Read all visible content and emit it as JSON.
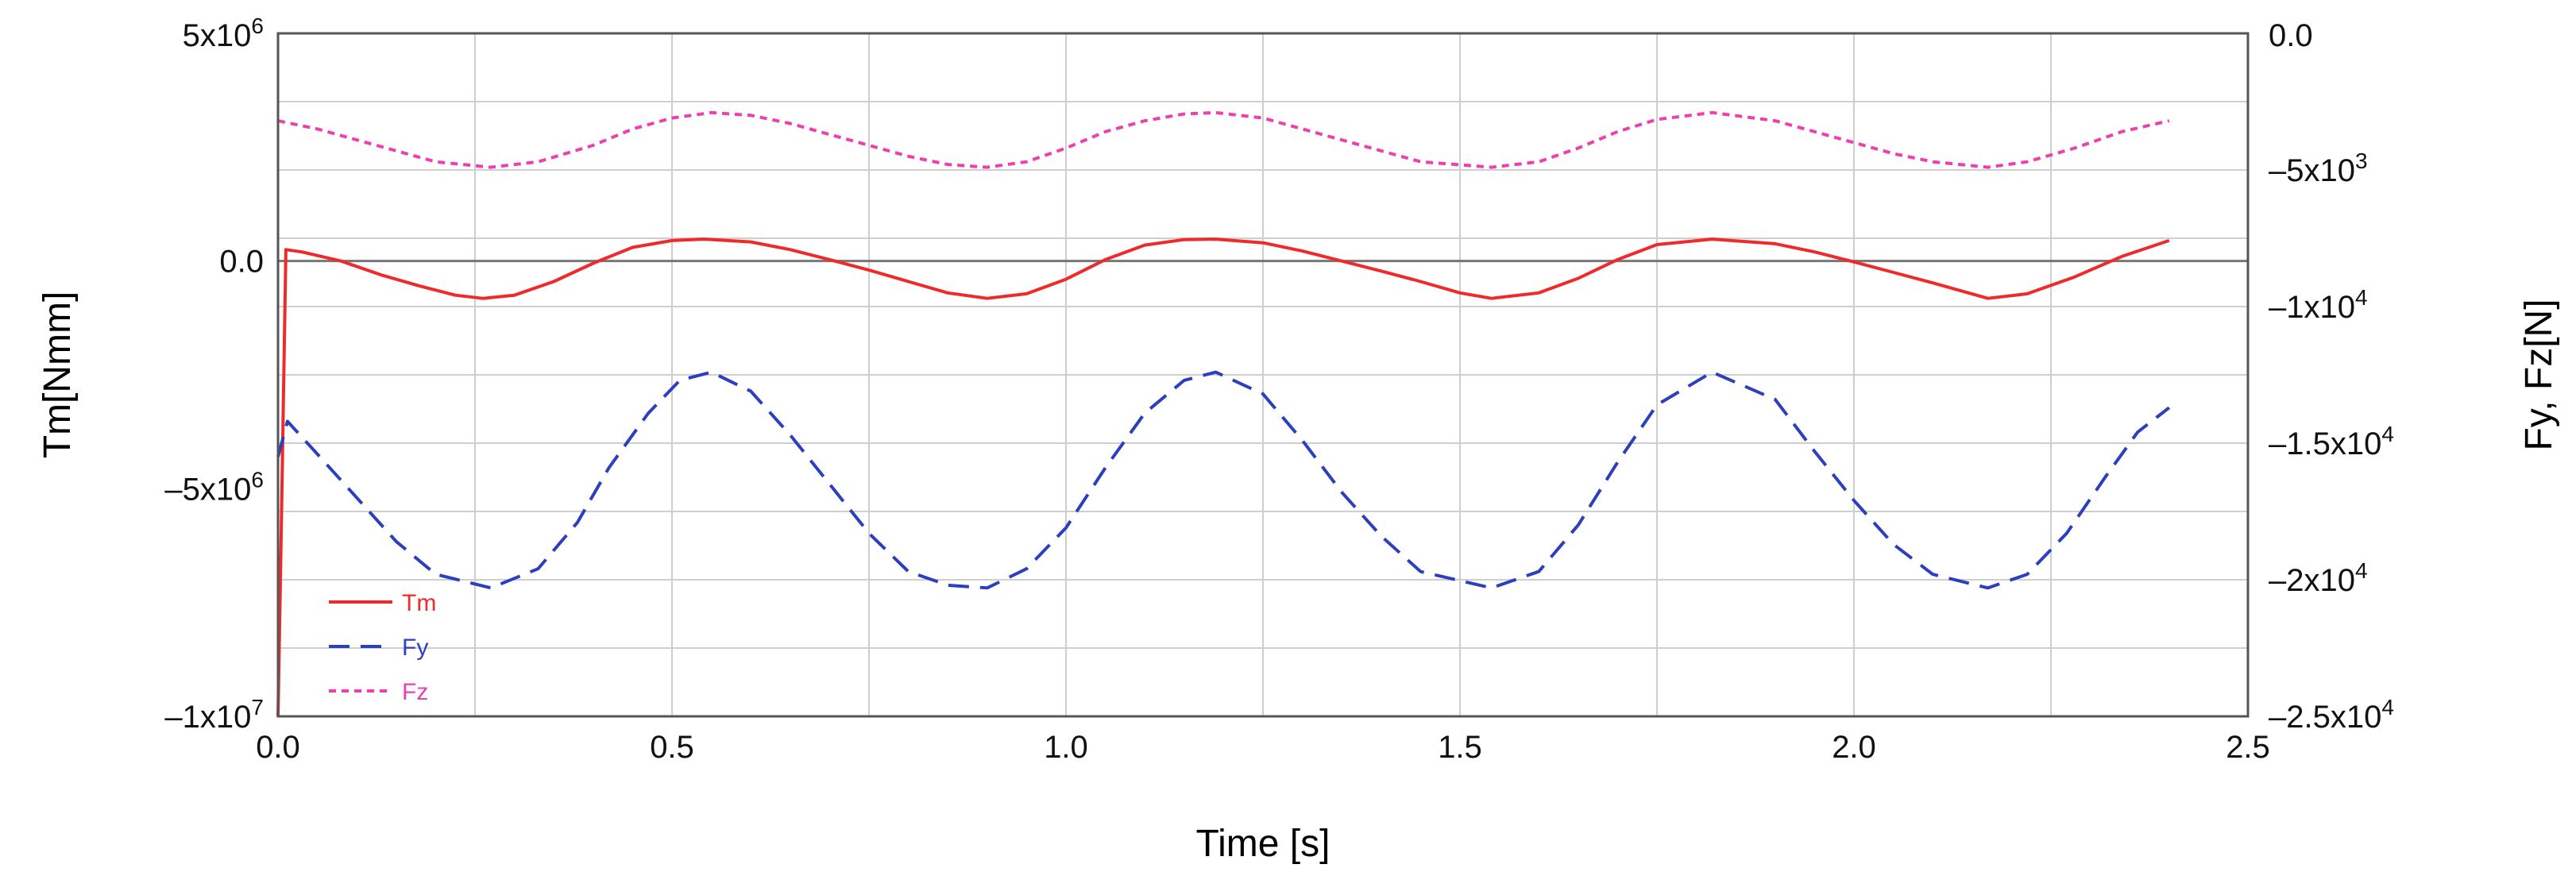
{
  "chart_data": {
    "type": "line",
    "xlabel": "Time [s]",
    "ylabel_left": "Tm[Nmm]",
    "ylabel_right": "Fy, Fz[N]",
    "xlim": [
      0,
      2.5
    ],
    "ylim_left": [
      -10000000,
      5000000
    ],
    "ylim_right": [
      -25000,
      0
    ],
    "grid": true,
    "legend_position": "bottom-left",
    "x_ticks": [
      {
        "value": 0.0,
        "label": "0.0"
      },
      {
        "value": 0.5,
        "label": "0.5"
      },
      {
        "value": 1.0,
        "label": "1.0"
      },
      {
        "value": 1.5,
        "label": "1.5"
      },
      {
        "value": 2.0,
        "label": "2.0"
      },
      {
        "value": 2.5,
        "label": "2.5"
      }
    ],
    "y_left_ticks": [
      {
        "value": 5000000,
        "base": "5x10",
        "exp": "6",
        "dash": false
      },
      {
        "value": 0,
        "base": "0.0",
        "exp": "",
        "dash": false
      },
      {
        "value": -5000000,
        "base": "5x10",
        "exp": "6",
        "dash": true
      },
      {
        "value": -10000000,
        "base": "1x10",
        "exp": "7",
        "dash": true
      }
    ],
    "y_right_ticks": [
      {
        "value": 0,
        "base": "0.0",
        "exp": "",
        "dash": false
      },
      {
        "value": -5000,
        "base": "5x10",
        "exp": "3",
        "dash": true
      },
      {
        "value": -10000,
        "base": "1x10",
        "exp": "4",
        "dash": true
      },
      {
        "value": -15000,
        "base": "1.5x10",
        "exp": "4",
        "dash": true
      },
      {
        "value": -20000,
        "base": "2x10",
        "exp": "4",
        "dash": true
      },
      {
        "value": -25000,
        "base": "2.5x10",
        "exp": "4",
        "dash": true
      }
    ],
    "series": [
      {
        "name": "Tm",
        "axis": "left",
        "color": "#ee2a2a",
        "style": "solid",
        "points": [
          [
            0.0,
            -10000000
          ],
          [
            0.004,
            -6000000
          ],
          [
            0.01,
            250000
          ],
          [
            0.03,
            200000
          ],
          [
            0.08,
            0
          ],
          [
            0.13,
            -300000
          ],
          [
            0.18,
            -550000
          ],
          [
            0.225,
            -750000
          ],
          [
            0.26,
            -820000
          ],
          [
            0.3,
            -750000
          ],
          [
            0.35,
            -450000
          ],
          [
            0.4,
            -50000
          ],
          [
            0.45,
            300000
          ],
          [
            0.5,
            450000
          ],
          [
            0.54,
            480000
          ],
          [
            0.6,
            420000
          ],
          [
            0.65,
            250000
          ],
          [
            0.7,
            30000
          ],
          [
            0.75,
            -200000
          ],
          [
            0.8,
            -450000
          ],
          [
            0.85,
            -700000
          ],
          [
            0.9,
            -820000
          ],
          [
            0.95,
            -720000
          ],
          [
            1.0,
            -400000
          ],
          [
            1.05,
            30000
          ],
          [
            1.1,
            350000
          ],
          [
            1.15,
            470000
          ],
          [
            1.19,
            480000
          ],
          [
            1.25,
            400000
          ],
          [
            1.3,
            220000
          ],
          [
            1.35,
            0
          ],
          [
            1.4,
            -220000
          ],
          [
            1.45,
            -450000
          ],
          [
            1.5,
            -700000
          ],
          [
            1.54,
            -820000
          ],
          [
            1.6,
            -700000
          ],
          [
            1.65,
            -380000
          ],
          [
            1.7,
            30000
          ],
          [
            1.75,
            360000
          ],
          [
            1.82,
            480000
          ],
          [
            1.9,
            380000
          ],
          [
            1.95,
            200000
          ],
          [
            2.0,
            -20000
          ],
          [
            2.05,
            -250000
          ],
          [
            2.1,
            -480000
          ],
          [
            2.17,
            -820000
          ],
          [
            2.22,
            -720000
          ],
          [
            2.28,
            -350000
          ],
          [
            2.34,
            100000
          ],
          [
            2.4,
            450000
          ]
        ]
      },
      {
        "name": "Fy",
        "axis": "right",
        "color": "#2b3fbf",
        "style": "dashed",
        "points": [
          [
            0.0,
            -15500
          ],
          [
            0.012,
            -14200
          ],
          [
            0.05,
            -15400
          ],
          [
            0.1,
            -17000
          ],
          [
            0.15,
            -18600
          ],
          [
            0.2,
            -19800
          ],
          [
            0.27,
            -20300
          ],
          [
            0.33,
            -19600
          ],
          [
            0.38,
            -17900
          ],
          [
            0.42,
            -15900
          ],
          [
            0.47,
            -13900
          ],
          [
            0.51,
            -12700
          ],
          [
            0.55,
            -12400
          ],
          [
            0.6,
            -13100
          ],
          [
            0.65,
            -14700
          ],
          [
            0.7,
            -16500
          ],
          [
            0.75,
            -18300
          ],
          [
            0.8,
            -19700
          ],
          [
            0.85,
            -20200
          ],
          [
            0.9,
            -20300
          ],
          [
            0.95,
            -19600
          ],
          [
            1.0,
            -18100
          ],
          [
            1.05,
            -15900
          ],
          [
            1.1,
            -13900
          ],
          [
            1.15,
            -12700
          ],
          [
            1.19,
            -12400
          ],
          [
            1.25,
            -13200
          ],
          [
            1.3,
            -14900
          ],
          [
            1.35,
            -16800
          ],
          [
            1.4,
            -18400
          ],
          [
            1.45,
            -19700
          ],
          [
            1.54,
            -20300
          ],
          [
            1.6,
            -19700
          ],
          [
            1.65,
            -18000
          ],
          [
            1.7,
            -15700
          ],
          [
            1.75,
            -13600
          ],
          [
            1.82,
            -12400
          ],
          [
            1.9,
            -13400
          ],
          [
            1.95,
            -15300
          ],
          [
            2.0,
            -17100
          ],
          [
            2.05,
            -18700
          ],
          [
            2.1,
            -19800
          ],
          [
            2.17,
            -20300
          ],
          [
            2.22,
            -19800
          ],
          [
            2.27,
            -18300
          ],
          [
            2.32,
            -16200
          ],
          [
            2.36,
            -14600
          ],
          [
            2.4,
            -13700
          ]
        ]
      },
      {
        "name": "Fz",
        "axis": "right",
        "color": "#ee3fae",
        "style": "dotted",
        "points": [
          [
            0.0,
            -3200
          ],
          [
            0.05,
            -3500
          ],
          [
            0.1,
            -3900
          ],
          [
            0.15,
            -4300
          ],
          [
            0.2,
            -4700
          ],
          [
            0.27,
            -4900
          ],
          [
            0.33,
            -4700
          ],
          [
            0.4,
            -4100
          ],
          [
            0.45,
            -3500
          ],
          [
            0.5,
            -3100
          ],
          [
            0.55,
            -2900
          ],
          [
            0.6,
            -3000
          ],
          [
            0.65,
            -3300
          ],
          [
            0.7,
            -3700
          ],
          [
            0.75,
            -4100
          ],
          [
            0.8,
            -4500
          ],
          [
            0.85,
            -4800
          ],
          [
            0.9,
            -4900
          ],
          [
            0.95,
            -4700
          ],
          [
            1.0,
            -4200
          ],
          [
            1.05,
            -3600
          ],
          [
            1.1,
            -3200
          ],
          [
            1.15,
            -2950
          ],
          [
            1.19,
            -2900
          ],
          [
            1.25,
            -3100
          ],
          [
            1.3,
            -3500
          ],
          [
            1.35,
            -3900
          ],
          [
            1.4,
            -4300
          ],
          [
            1.45,
            -4700
          ],
          [
            1.54,
            -4900
          ],
          [
            1.6,
            -4700
          ],
          [
            1.65,
            -4200
          ],
          [
            1.7,
            -3600
          ],
          [
            1.75,
            -3150
          ],
          [
            1.82,
            -2900
          ],
          [
            1.9,
            -3200
          ],
          [
            1.95,
            -3600
          ],
          [
            2.0,
            -4000
          ],
          [
            2.05,
            -4400
          ],
          [
            2.1,
            -4700
          ],
          [
            2.17,
            -4900
          ],
          [
            2.22,
            -4700
          ],
          [
            2.28,
            -4200
          ],
          [
            2.34,
            -3600
          ],
          [
            2.4,
            -3200
          ]
        ]
      }
    ]
  }
}
